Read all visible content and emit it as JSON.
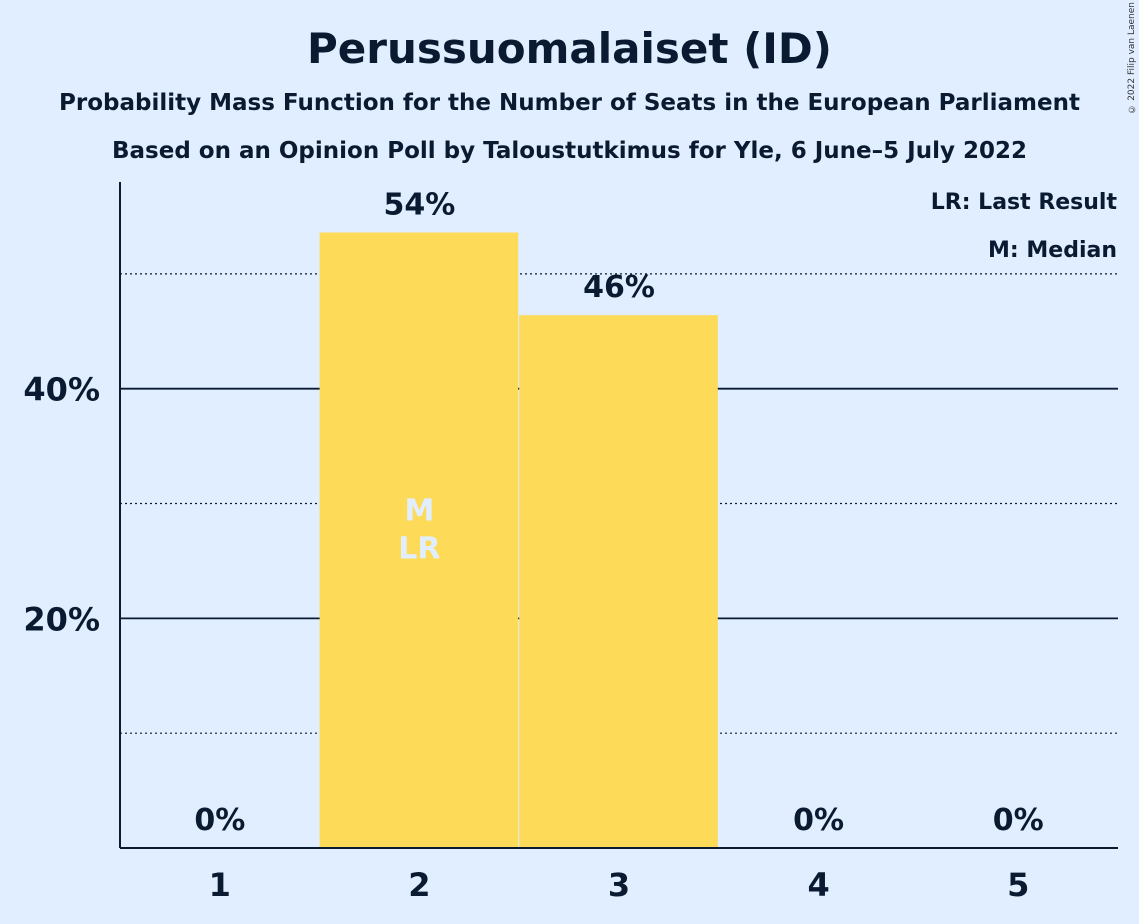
{
  "title": "Perussuomalaiset (ID)",
  "subtitle": "Probability Mass Function for the Number of Seats in the European Parliament",
  "subtitle2": "Based on an Opinion Poll by Taloustutkimus for Yle, 6 June–5 July 2022",
  "copyright": "© 2022 Filip van Laenen",
  "legend": [
    "LR: Last Result",
    "M: Median"
  ],
  "colors": {
    "bar": "#fdda57",
    "background": "#e0eeff",
    "text": "#0a1a30",
    "marker": "#e0eeff"
  },
  "chart_data": {
    "type": "bar",
    "categories": [
      "1",
      "2",
      "3",
      "4",
      "5"
    ],
    "values": [
      0,
      53.6,
      46.4,
      0,
      0
    ],
    "value_labels": [
      "0%",
      "54%",
      "46%",
      "0%",
      "0%"
    ],
    "ylim": [
      0,
      58
    ],
    "y_ticks": [
      {
        "value": 20,
        "label": "20%"
      },
      {
        "value": 40,
        "label": "40%"
      }
    ],
    "minor_gridlines": [
      10,
      30,
      50
    ],
    "markers": [
      {
        "category": "2",
        "label": "M"
      },
      {
        "category": "2",
        "label": "LR"
      }
    ],
    "grid": true,
    "legend_position": "top-right"
  }
}
